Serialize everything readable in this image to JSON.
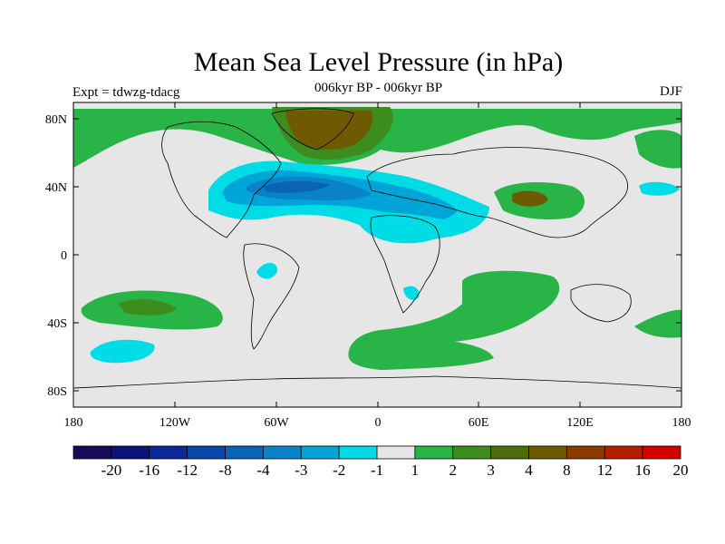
{
  "title": "Mean Sea Level Pressure (in hPa)",
  "subtitle": "006kyr BP - 006kyr BP",
  "experiment": "Expt = tdwzg-tdacg",
  "season": "DJF",
  "lat_ticks": [
    "80N",
    "40N",
    "0",
    "40S",
    "80S"
  ],
  "lon_ticks": [
    "180",
    "120W",
    "60W",
    "0",
    "60E",
    "120E",
    "180"
  ],
  "colorbar": {
    "labels": [
      "-20",
      "-16",
      "-12",
      "-8",
      "-4",
      "-3",
      "-2",
      "-1",
      "1",
      "2",
      "3",
      "4",
      "8",
      "12",
      "16",
      "20"
    ],
    "colors": [
      "#1a0a5a",
      "#0a1478",
      "#0a2896",
      "#0a46aa",
      "#0a64b4",
      "#0a82c8",
      "#00a5d7",
      "#00dce6",
      "#e6e6e6",
      "#28b446",
      "#3c8c1e",
      "#4b6e0a",
      "#6e5a00",
      "#8c3c00",
      "#b41e00",
      "#d20000"
    ]
  },
  "colors": {
    "background": "#e6e6e6",
    "neg1": "#00dce6",
    "neg2": "#00a5d7",
    "neg3": "#0a82c8",
    "neg4": "#0a64b4",
    "pos1": "#28b446",
    "pos2": "#3c8c1e",
    "pos3": "#6e5a00"
  }
}
